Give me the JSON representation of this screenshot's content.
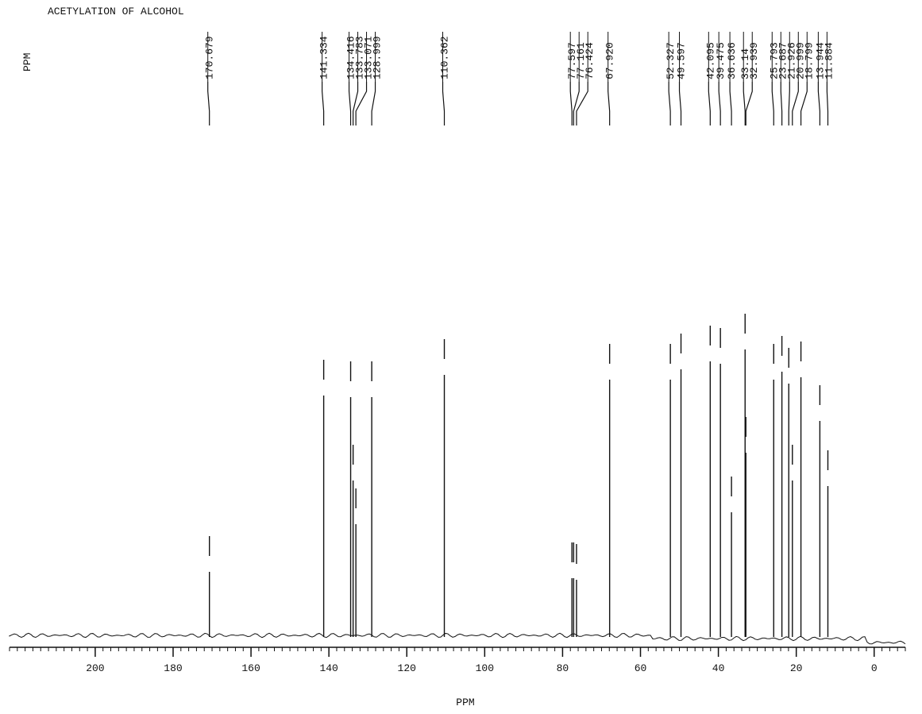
{
  "chart_data": {
    "type": "spectrum",
    "title": "ACETYLATION OF ALCOHOL",
    "corner_label": "PPM",
    "x_label": "PPM",
    "x": [
      170.679,
      141.334,
      134.416,
      133.783,
      133.071,
      128.999,
      110.362,
      77.597,
      77.161,
      76.424,
      {
        "value": 67.92,
        "label": "67.920"
      },
      52.327,
      49.597,
      42.095,
      39.475,
      36.636,
      33.14,
      32.939,
      25.793,
      23.687,
      21.926,
      20.999,
      18.799,
      13.944,
      11.884
    ],
    "values": [
      80,
      302,
      300,
      195,
      140,
      300,
      328,
      72,
      72,
      70,
      322,
      322,
      335,
      345,
      342,
      155,
      360,
      230,
      322,
      332,
      317,
      195,
      325,
      270,
      188
    ],
    "xlim": [
      222,
      -8
    ],
    "ylim": [
      0,
      400
    ],
    "xticks": [
      200,
      180,
      160,
      140,
      120,
      100,
      80,
      60,
      40,
      20,
      0
    ],
    "color": "#111111"
  }
}
